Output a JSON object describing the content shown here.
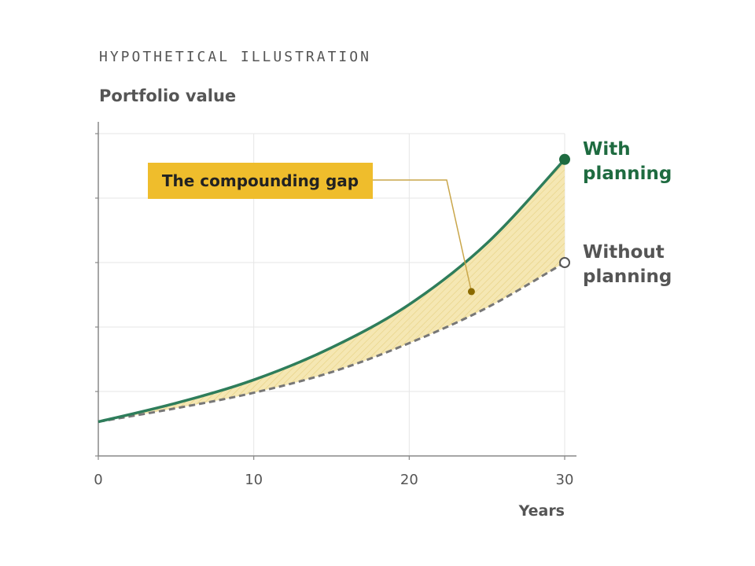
{
  "header": {
    "eyebrow": "HYPOTHETICAL ILLUSTRATION",
    "ylabel": "Portfolio value"
  },
  "annotation": {
    "text": "The compounding gap"
  },
  "colors": {
    "with_planning": "#2e7d5b",
    "with_planning_label": "#1e6b40",
    "without_planning": "#777777",
    "without_planning_label": "#555555",
    "gap_fill": "#f3e3a6",
    "callout": "#efbd2c",
    "callout_leader": "#c9a64a",
    "callout_dot": "#8a6a00",
    "axis": "#888888",
    "grid": "#e6e6e6"
  },
  "chart_data": {
    "type": "line",
    "xlabel": "Years",
    "ylabel": "Portfolio value",
    "xlim": [
      0,
      30
    ],
    "ylim": [
      0,
      5
    ],
    "x_ticks": [
      0,
      10,
      20,
      30
    ],
    "grid": true,
    "series": [
      {
        "name": "With planning",
        "label_lines": [
          "With",
          "planning"
        ],
        "x": [
          0,
          5,
          10,
          15,
          20,
          25,
          30
        ],
        "y": [
          0.53,
          0.82,
          1.18,
          1.68,
          2.35,
          3.3,
          4.6
        ],
        "style": "solid",
        "end_marker": "filled"
      },
      {
        "name": "Without planning",
        "label_lines": [
          "Without",
          "planning"
        ],
        "x": [
          0,
          5,
          10,
          15,
          20,
          25,
          30
        ],
        "y": [
          0.53,
          0.74,
          0.98,
          1.3,
          1.75,
          2.3,
          3.0
        ],
        "style": "dashed",
        "end_marker": "hollow"
      }
    ],
    "shaded_region": "between series",
    "annotations": [
      {
        "text": "The compounding gap",
        "points_to_x": 24,
        "points_to_y": 2.55
      }
    ]
  }
}
